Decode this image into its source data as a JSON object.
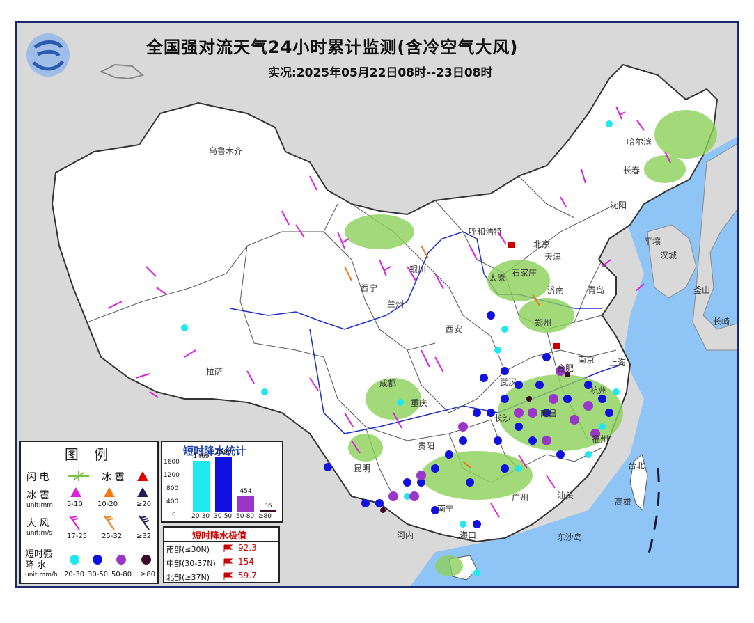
{
  "header": {
    "title": "全国强对流天气24小时累计监测(含冷空气大风)",
    "subtitle": "实况:2025年05月22日08时--23日08时"
  },
  "cities": [
    {
      "name": "乌鲁木齐"
    },
    {
      "name": "哈尔滨"
    },
    {
      "name": "长春"
    },
    {
      "name": "沈阳"
    },
    {
      "name": "呼和浩特"
    },
    {
      "name": "北京"
    },
    {
      "name": "天津"
    },
    {
      "name": "太原"
    },
    {
      "name": "石家庄"
    },
    {
      "name": "济南"
    },
    {
      "name": "青岛"
    },
    {
      "name": "银川"
    },
    {
      "name": "西宁"
    },
    {
      "name": "兰州"
    },
    {
      "name": "西安"
    },
    {
      "name": "郑州"
    },
    {
      "name": "南京"
    },
    {
      "name": "合肥"
    },
    {
      "name": "上海"
    },
    {
      "name": "杭州"
    },
    {
      "name": "武汉"
    },
    {
      "name": "南昌"
    },
    {
      "name": "福州"
    },
    {
      "name": "长沙"
    },
    {
      "name": "重庆"
    },
    {
      "name": "成都"
    },
    {
      "name": "贵阳"
    },
    {
      "name": "昆明"
    },
    {
      "name": "南宁"
    },
    {
      "name": "广州"
    },
    {
      "name": "海口"
    },
    {
      "name": "拉萨"
    },
    {
      "name": "汕头"
    },
    {
      "name": "台北"
    },
    {
      "name": "高雄"
    },
    {
      "name": "平壤"
    },
    {
      "name": "汉城"
    },
    {
      "name": "釜山"
    },
    {
      "name": "长崎"
    },
    {
      "name": "河内"
    },
    {
      "name": "东沙岛"
    }
  ],
  "legend": {
    "title": "图 例",
    "lightning": "闪 电",
    "hail_label": "冰 雹",
    "hail_row": "冰 雹",
    "hail_unit": "unit:mm",
    "hail_ranges": [
      "5-10",
      "10-20",
      "≥20"
    ],
    "wind_label": "大 风",
    "wind_unit": "unit:m/s",
    "wind_ranges": [
      "17-25",
      "25-32",
      "≥32"
    ],
    "rain_label_1": "短时强",
    "rain_label_2": "降 水",
    "rain_unit": "unit:mm/h",
    "rain_ranges": [
      "20-30",
      "30-50",
      "50-80",
      "≥80"
    ],
    "colors": {
      "lightning": "#7cc242",
      "hail1": "#e020e0",
      "hail2": "#f07a10",
      "hail3": "#1f1f5a",
      "big_hail": "#e00000",
      "rain1": "#20e8f0",
      "rain2": "#1010e0",
      "rain3": "#9a36c8",
      "rain4": "#3a0a2a"
    }
  },
  "stats": {
    "title": "短时降水统计",
    "y_ticks": [
      "1600",
      "1200",
      "800",
      "400",
      "0"
    ],
    "bars": [
      {
        "label": "20-30",
        "value": 1469,
        "value_text": "1469",
        "color": "#20e8f0"
      },
      {
        "label": "30-50",
        "value": 1586,
        "value_text": "1586",
        "color": "#1010e0"
      },
      {
        "label": "50-80",
        "value": 454,
        "value_text": "454",
        "color": "#9a36c8"
      },
      {
        "label": "≥80",
        "value": 36,
        "value_text": "36",
        "color": "#3a0a2a"
      }
    ],
    "ymax": 1600
  },
  "extreme": {
    "title": "短时降水极值",
    "rows": [
      {
        "region": "南部(≤30N)",
        "value": "92.3"
      },
      {
        "region": "中部(30-37N)",
        "value": "154"
      },
      {
        "region": "北部(≥37N)",
        "value": "59.7"
      }
    ]
  }
}
